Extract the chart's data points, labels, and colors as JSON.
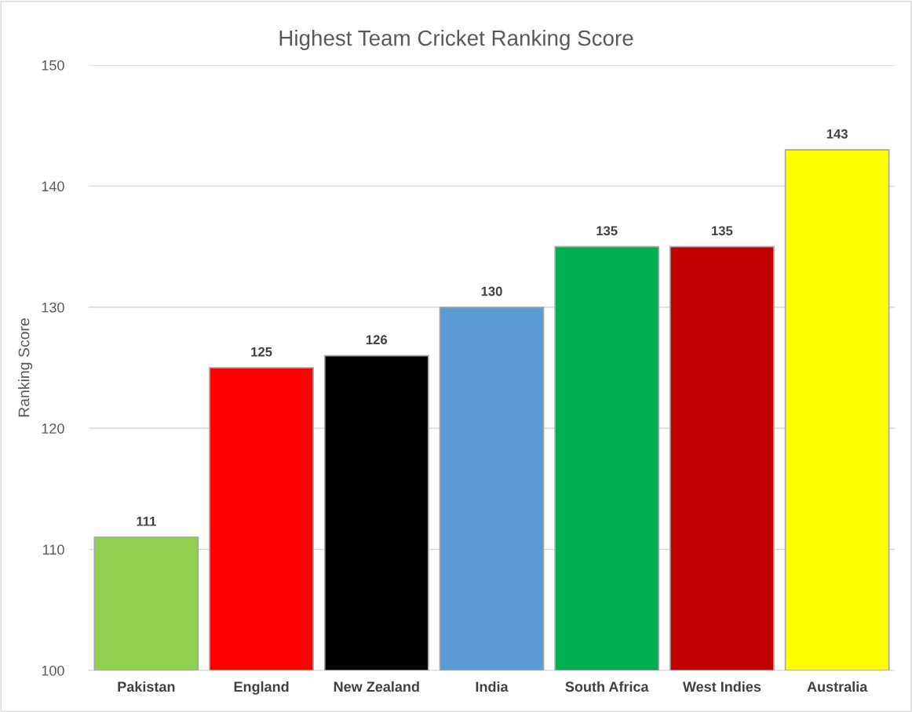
{
  "chart_data": {
    "type": "bar",
    "title": "Highest Team Cricket Ranking Score",
    "ylabel": "Ranking Score",
    "categories": [
      "Pakistan",
      "England",
      "New Zealand",
      "India",
      "South Africa",
      "West Indies",
      "Australia"
    ],
    "values": [
      111,
      125,
      126,
      130,
      135,
      135,
      143
    ],
    "colors": [
      "#92d050",
      "#ff0000",
      "#000000",
      "#5b9bd5",
      "#00b050",
      "#c00000",
      "#ffff00"
    ],
    "ylim": [
      100,
      150
    ],
    "yticks": [
      100,
      110,
      120,
      130,
      140,
      150
    ],
    "grid": "y",
    "data_labels": true
  }
}
